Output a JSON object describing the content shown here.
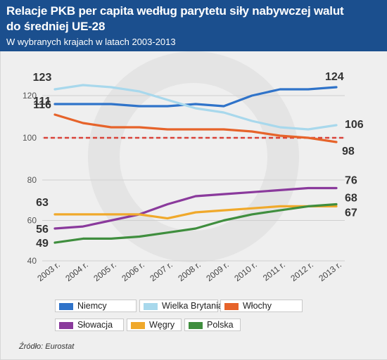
{
  "header": {
    "title_line1": "Relacje PKB per capita według parytetu siły nabywczej walut",
    "title_line2": "do średniej UE-28",
    "subtitle": "W wybranych krajach w latach 2003-2013"
  },
  "source": "Źródło: Eurostat",
  "colors": {
    "header_bg": "#1b4f8e",
    "Niemcy": "#2f73c9",
    "Wielka Brytania": "#a8d8ec",
    "Włochy": "#e6632a",
    "Słowacja": "#8a3a9c",
    "Węgry": "#f0a92b",
    "Polska": "#3f8e3e",
    "reference_line": "#d9433a"
  },
  "chart_data": [
    {
      "type": "line",
      "x": [
        "2003 r.",
        "2004 r.",
        "2005 r.",
        "2006 r.",
        "2007 r.",
        "2008 r.",
        "2009 r.",
        "2010 r.",
        "2011 r.",
        "2012 r.",
        "2013 r."
      ],
      "ylim": [
        95,
        128
      ],
      "yticks": [
        100,
        120
      ],
      "reference_line": 100,
      "series": [
        {
          "name": "Niemcy",
          "values": [
            116,
            116,
            116,
            115,
            115,
            116,
            115,
            120,
            123,
            123,
            124
          ],
          "end_label": "124",
          "start_label": "116"
        },
        {
          "name": "Wielka Brytania",
          "values": [
            123,
            125,
            124,
            122,
            118,
            114,
            112,
            108,
            105,
            104,
            106
          ],
          "end_label": "106",
          "start_label": "123"
        },
        {
          "name": "Włochy",
          "values": [
            111,
            107,
            105,
            105,
            104,
            104,
            104,
            103,
            101,
            100,
            98
          ],
          "end_label": "98",
          "start_label": "111"
        }
      ]
    },
    {
      "type": "line",
      "x": [
        "2003 r.",
        "2004 r.",
        "2005 r.",
        "2006 r.",
        "2007 r.",
        "2008 r.",
        "2009 r.",
        "2010 r.",
        "2011 r.",
        "2012 r.",
        "2013 r."
      ],
      "ylim": [
        40,
        80
      ],
      "yticks": [
        40,
        60,
        80
      ],
      "series": [
        {
          "name": "Słowacja",
          "values": [
            56,
            57,
            60,
            63,
            68,
            72,
            73,
            74,
            75,
            76,
            76
          ],
          "end_label": "76",
          "start_label": "56"
        },
        {
          "name": "Węgry",
          "values": [
            63,
            63,
            63,
            63,
            61,
            64,
            65,
            66,
            67,
            67,
            67
          ],
          "end_label": "67",
          "start_label": "63"
        },
        {
          "name": "Polska",
          "values": [
            49,
            51,
            51,
            52,
            54,
            56,
            60,
            63,
            65,
            67,
            68
          ],
          "end_label": "68",
          "start_label": "49"
        }
      ]
    }
  ],
  "legend": [
    {
      "label": "Niemcy",
      "key": "Niemcy"
    },
    {
      "label": "Wielka Brytania",
      "key": "Wielka Brytania"
    },
    {
      "label": "Włochy",
      "key": "Włochy"
    },
    {
      "label": "Słowacja",
      "key": "Słowacja"
    },
    {
      "label": "Węgry",
      "key": "Węgry"
    },
    {
      "label": "Polska",
      "key": "Polska"
    }
  ]
}
